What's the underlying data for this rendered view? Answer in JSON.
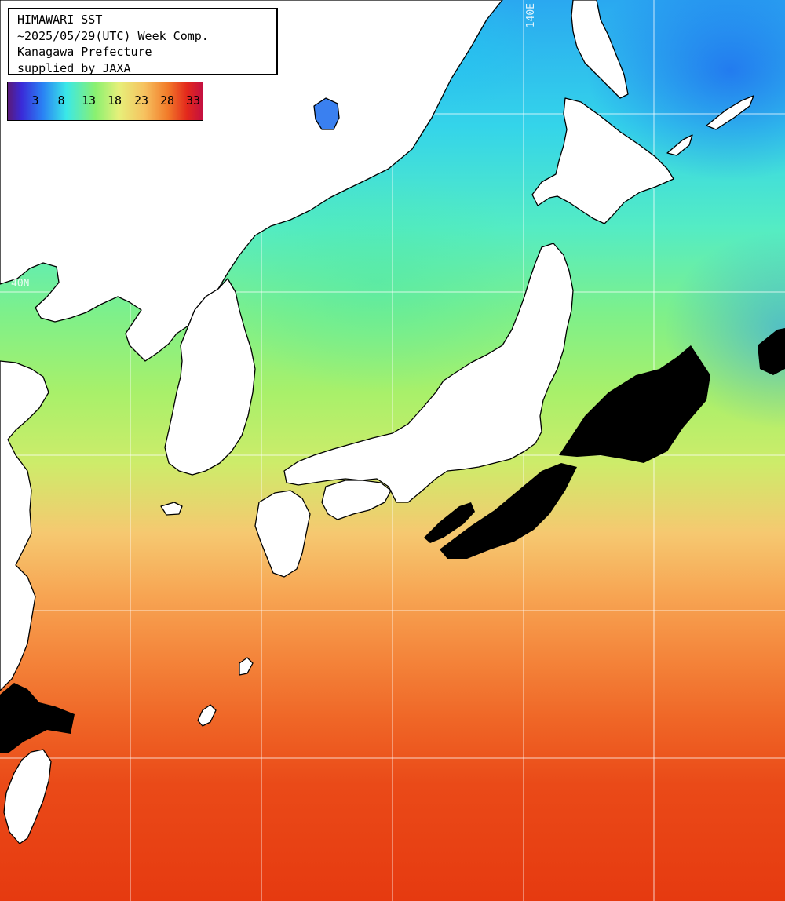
{
  "info": {
    "lines": [
      "HIMAWARI SST",
      "~2025/05/29(UTC) Week Comp.",
      "Kanagawa Prefecture",
      "supplied by JAXA"
    ]
  },
  "colorbar": {
    "ticks": [
      "3",
      "8",
      "13",
      "18",
      "23",
      "28",
      "33"
    ],
    "unit_colors": [
      "#5a1a78",
      "#3a2ad8",
      "#2a82f4",
      "#3ae8e8",
      "#8af070",
      "#e6f07a",
      "#f6c260",
      "#f27c2a",
      "#e3281c",
      "#c41040"
    ]
  },
  "grid": {
    "lon_label": "140E",
    "lat_label": "40N",
    "line_color": "#ffffff"
  },
  "colors": {
    "land": "#ffffff",
    "coast": "#000000",
    "cloud_mask": "#000000"
  }
}
